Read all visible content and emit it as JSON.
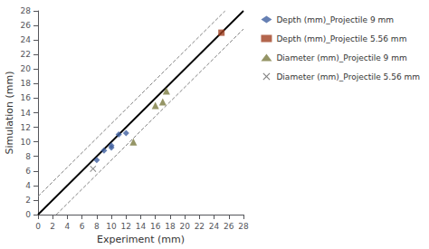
{
  "chart_data": {
    "type": "scatter",
    "xlabel": "Experiment (mm)",
    "ylabel": "Simulation (mm)",
    "xlim": [
      0,
      28
    ],
    "ylim": [
      0,
      28
    ],
    "xticks": [
      0,
      2,
      4,
      6,
      8,
      10,
      12,
      14,
      16,
      18,
      20,
      22,
      24,
      26,
      28
    ],
    "yticks": [
      0,
      2,
      4,
      6,
      8,
      10,
      12,
      14,
      16,
      18,
      20,
      22,
      24,
      26,
      28
    ],
    "grid": false,
    "legend": "right",
    "series": [
      {
        "name": "Depth (mm)_Projectile 9 mm",
        "type": "scatter",
        "color": "#4060a0",
        "marker": "diamond",
        "x": [
          8,
          9,
          10,
          10,
          11,
          12
        ],
        "values": [
          7.5,
          8.8,
          9.2,
          9.5,
          11.0,
          11.2
        ]
      },
      {
        "name": "Depth (mm)_Projectile 5.56 mm",
        "type": "scatter",
        "color": "#a04020",
        "marker": "square",
        "x": [
          25
        ],
        "values": [
          25
        ]
      },
      {
        "name": "Diameter (mm)_Projectile 9 mm",
        "type": "scatter",
        "color": "#7a7a40",
        "marker": "triangle",
        "x": [
          13,
          16,
          17,
          17.5
        ],
        "values": [
          10.0,
          15.0,
          15.5,
          17.0
        ]
      },
      {
        "name": "Diameter (mm)_Projectile 5.56 mm",
        "type": "scatter",
        "color": "#606060",
        "marker": "x",
        "x": [
          7.5
        ],
        "values": [
          6.3
        ]
      },
      {
        "type": "line",
        "color": "#000000",
        "line_style": "solid",
        "x": [
          0,
          28
        ],
        "values": [
          0,
          28
        ]
      },
      {
        "type": "line",
        "color": "#808080",
        "line_style": "dashed",
        "x": [
          0,
          25.5
        ],
        "values": [
          2.5,
          28
        ]
      },
      {
        "type": "line",
        "color": "#808080",
        "line_style": "dashed",
        "x": [
          2.5,
          28
        ],
        "values": [
          0,
          25.5
        ]
      }
    ]
  }
}
